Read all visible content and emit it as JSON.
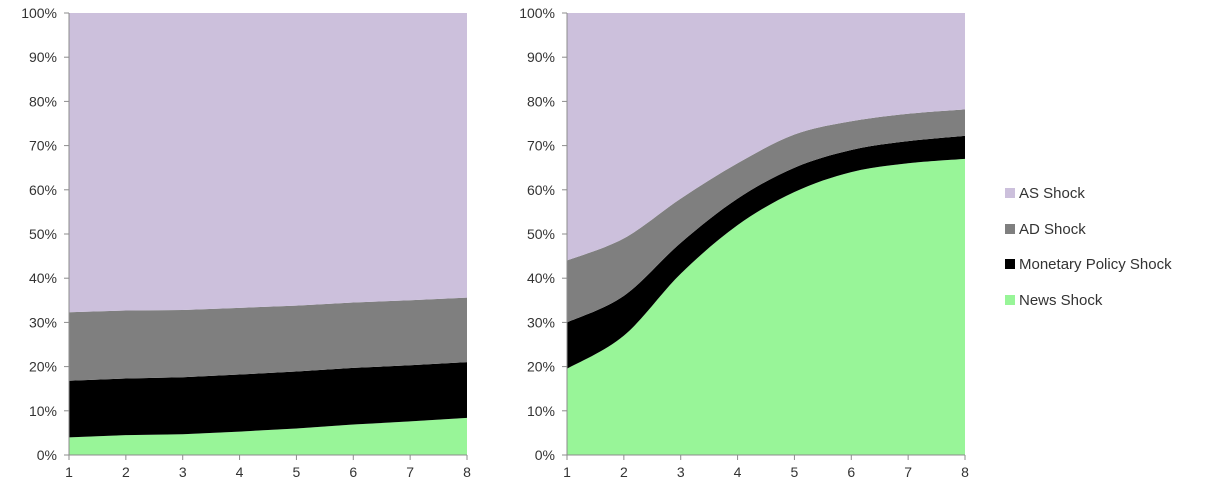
{
  "chart_data": [
    {
      "type": "area",
      "stacked": true,
      "percent": true,
      "x": [
        1,
        2,
        3,
        4,
        5,
        6,
        7,
        8
      ],
      "ylim": [
        0,
        100
      ],
      "yticks": [
        "0%",
        "10%",
        "20%",
        "30%",
        "40%",
        "50%",
        "60%",
        "70%",
        "80%",
        "90%",
        "100%"
      ],
      "xticks": [
        "1",
        "2",
        "3",
        "4",
        "5",
        "6",
        "7",
        "8"
      ],
      "grid": false,
      "series": [
        {
          "name": "News Shock",
          "color": "#98f598",
          "values": [
            4,
            4.5,
            4.7,
            5.3,
            6,
            6.9,
            7.6,
            8.4
          ]
        },
        {
          "name": "Monetary Policy Shock",
          "color": "#000000",
          "values": [
            12.8,
            12.8,
            12.9,
            12.9,
            12.9,
            12.8,
            12.7,
            12.6
          ]
        },
        {
          "name": "AD Shock",
          "color": "#7f7f7f",
          "values": [
            15.5,
            15.4,
            15.2,
            15.1,
            14.9,
            14.8,
            14.7,
            14.6
          ]
        },
        {
          "name": "AS Shock",
          "color": "#ccc0dc",
          "values": [
            67.7,
            67.3,
            67.2,
            66.7,
            66.2,
            65.5,
            65.0,
            64.4
          ]
        }
      ]
    },
    {
      "type": "area",
      "stacked": true,
      "percent": true,
      "x": [
        1,
        2,
        3,
        4,
        5,
        6,
        7,
        8
      ],
      "ylim": [
        0,
        100
      ],
      "yticks": [
        "0%",
        "10%",
        "20%",
        "30%",
        "40%",
        "50%",
        "60%",
        "70%",
        "80%",
        "90%",
        "100%"
      ],
      "xticks": [
        "1",
        "2",
        "3",
        "4",
        "5",
        "6",
        "7",
        "8"
      ],
      "grid": false,
      "series": [
        {
          "name": "News Shock",
          "color": "#98f598",
          "values": [
            19.5,
            27,
            41,
            52,
            59.5,
            64,
            66,
            67
          ]
        },
        {
          "name": "Monetary Policy Shock",
          "color": "#000000",
          "values": [
            10.5,
            9,
            7,
            6,
            5.5,
            5,
            5,
            5.2
          ]
        },
        {
          "name": "AD Shock",
          "color": "#7f7f7f",
          "values": [
            14,
            13,
            10,
            8,
            7.5,
            6.5,
            6.2,
            6
          ]
        },
        {
          "name": "AS Shock",
          "color": "#ccc0dc",
          "values": [
            56,
            51,
            42,
            34,
            27.5,
            24.5,
            22.8,
            21.8
          ]
        }
      ]
    }
  ],
  "legend": {
    "position": "right",
    "items": [
      {
        "label": "AS Shock",
        "color": "#ccc0dc"
      },
      {
        "label": "AD Shock",
        "color": "#7f7f7f"
      },
      {
        "label": "Monetary Policy Shock",
        "color": "#000000"
      },
      {
        "label": "News Shock",
        "color": "#98f598"
      }
    ]
  }
}
